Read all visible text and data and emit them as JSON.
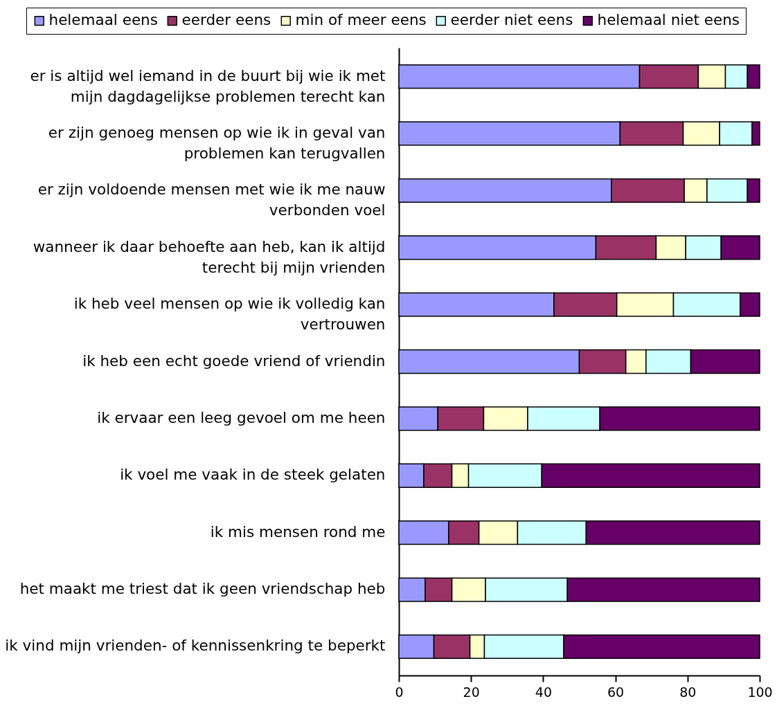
{
  "chart_data": {
    "type": "bar",
    "orientation": "horizontal",
    "stacked": true,
    "legend": "top",
    "categories": [
      "er is altijd wel iemand in de buurt bij wie ik met\nmijn dagdagelijkse problemen terecht kan",
      "er zijn genoeg mensen op wie ik in geval van\nproblemen kan terugvallen",
      "er zijn voldoende mensen met wie ik me nauw\nverbonden voel",
      "wanneer ik daar behoefte aan heb, kan ik altijd\nterecht bij mijn vrienden",
      "ik heb veel mensen op wie ik volledig kan\nvertrouwen",
      "ik heb een echt goede vriend of vriendin",
      "ik ervaar een leeg gevoel om me heen",
      "ik voel me vaak in de steek gelaten",
      "ik mis mensen rond me",
      "het maakt me triest dat ik geen vriendschap heb",
      "ik vind mijn vrienden- of kennissenkring te beperkt"
    ],
    "series": [
      {
        "name": "helemaal eens",
        "color": "#9999ff",
        "values": [
          66.7,
          61.3,
          58.9,
          54.6,
          43.0,
          50.0,
          10.8,
          6.9,
          13.8,
          7.3,
          9.7
        ]
      },
      {
        "name": "eerder eens",
        "color": "#993366",
        "values": [
          16.3,
          17.5,
          20.2,
          16.7,
          17.4,
          12.9,
          12.7,
          7.8,
          8.4,
          7.4,
          10.0
        ]
      },
      {
        "name": "min of meer eens",
        "color": "#ffffcc",
        "values": [
          7.5,
          10.1,
          6.3,
          8.2,
          15.7,
          5.6,
          12.2,
          4.6,
          10.7,
          9.3,
          4.0
        ]
      },
      {
        "name": "eerder niet eens",
        "color": "#ccffff",
        "values": [
          6.1,
          9.0,
          11.2,
          9.8,
          18.5,
          12.4,
          20.0,
          20.3,
          19.0,
          22.7,
          22.0
        ]
      },
      {
        "name": "helemaal niet eens",
        "color": "#660066",
        "values": [
          3.4,
          2.1,
          3.4,
          10.7,
          5.4,
          19.1,
          44.3,
          60.4,
          48.1,
          53.3,
          54.3
        ]
      }
    ],
    "xlim": [
      0,
      100
    ],
    "xticks": [
      0,
      20,
      40,
      60,
      80,
      100
    ],
    "grid": false
  }
}
